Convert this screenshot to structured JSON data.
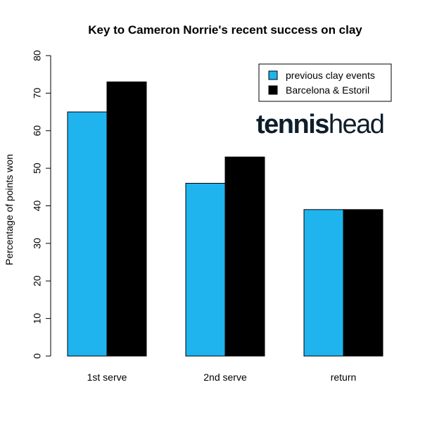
{
  "chart_data": {
    "type": "bar",
    "title": "Key to Cameron Norrie's recent success on clay",
    "xlabel": "",
    "ylabel": "Percentage of points won",
    "ylim": [
      0,
      80
    ],
    "yticks": [
      0,
      10,
      20,
      30,
      40,
      50,
      60,
      70,
      80
    ],
    "categories": [
      "1st serve",
      "2nd serve",
      "return"
    ],
    "series": [
      {
        "name": "previous clay events",
        "color": "#1fb4ee",
        "values": [
          65,
          46,
          39
        ]
      },
      {
        "name": "Barcelona & Estoril",
        "color": "#000000",
        "values": [
          73,
          53,
          39
        ]
      }
    ],
    "legend_position": "top-right",
    "grid": false
  },
  "watermark": {
    "part1": "tennis",
    "part2": "head",
    "color1": "#0e1e2b",
    "color2": "#0e1e2b"
  }
}
